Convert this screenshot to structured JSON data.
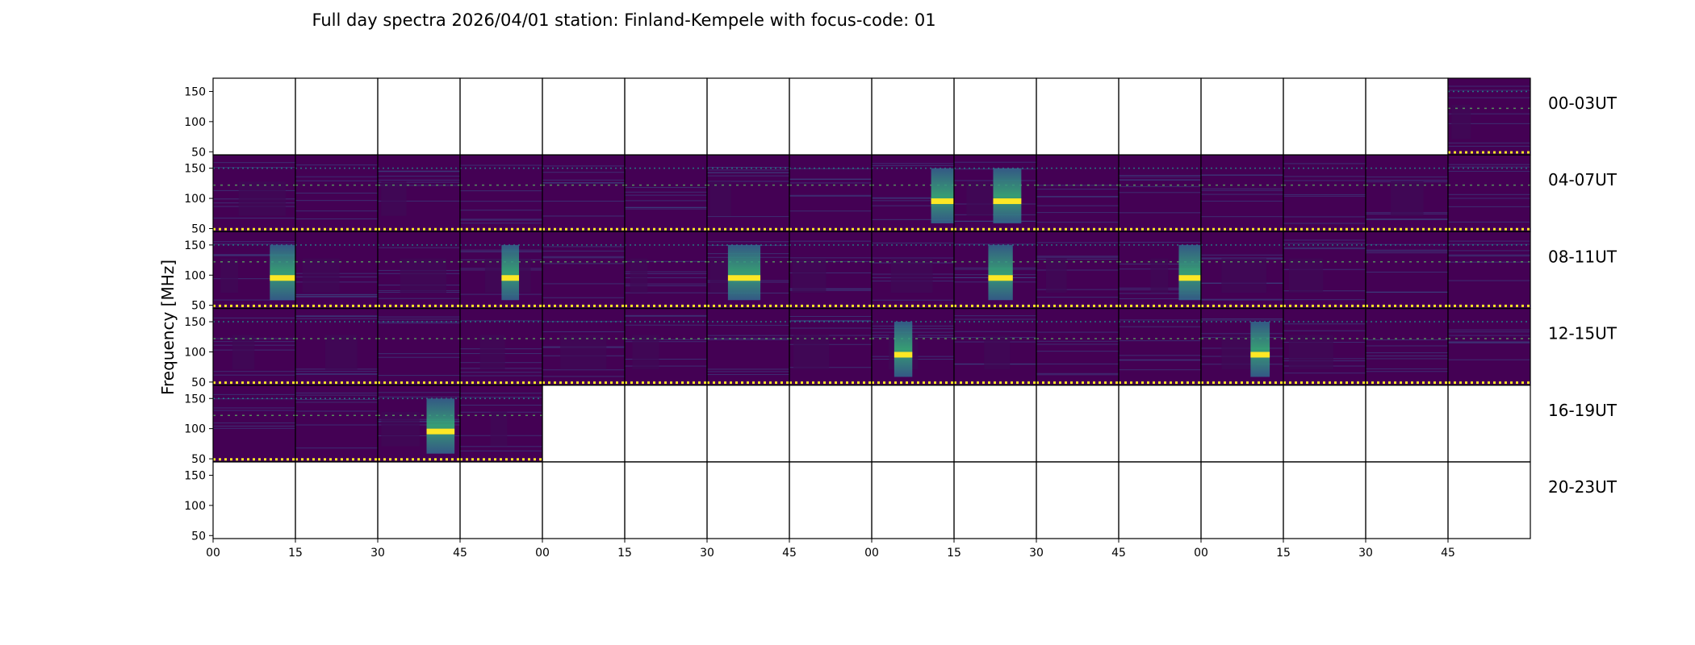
{
  "chart_data": {
    "type": "heatmap",
    "title": "Full day spectra 2026/04/01 station: Finland-Kempele with focus-code: 01",
    "ylabel": "Frequency [MHz]",
    "ylim": [
      45,
      172
    ],
    "yticks": [
      "150",
      "100",
      "50"
    ],
    "ytick_values": [
      150,
      100,
      50
    ],
    "xticks": [
      "00",
      "15",
      "30",
      "45",
      "00",
      "15",
      "30",
      "45",
      "00",
      "15",
      "30",
      "45",
      "00",
      "15",
      "30",
      "45"
    ],
    "colormap": [
      "#440154",
      "#3b528b",
      "#21918c",
      "#5ec962",
      "#fde725"
    ],
    "rows": [
      {
        "label": "00-03UT",
        "panels": [
          0,
          0,
          0,
          0,
          0,
          0,
          0,
          0,
          0,
          0,
          0,
          0,
          0,
          0,
          0,
          1
        ]
      },
      {
        "label": "04-07UT",
        "panels": [
          1,
          1,
          1,
          1,
          1,
          1,
          1,
          1,
          1,
          1,
          1,
          1,
          1,
          1,
          1,
          1
        ]
      },
      {
        "label": "08-11UT",
        "panels": [
          1,
          1,
          1,
          1,
          1,
          1,
          1,
          1,
          1,
          1,
          1,
          1,
          1,
          1,
          1,
          1
        ]
      },
      {
        "label": "12-15UT",
        "panels": [
          1,
          1,
          1,
          1,
          1,
          1,
          1,
          1,
          1,
          1,
          1,
          1,
          1,
          1,
          1,
          1
        ]
      },
      {
        "label": "16-19UT",
        "panels": [
          1,
          1,
          1,
          1,
          0,
          0,
          0,
          0,
          0,
          0,
          0,
          0,
          0,
          0,
          0,
          0
        ]
      },
      {
        "label": "20-23UT",
        "panels": [
          0,
          0,
          0,
          0,
          0,
          0,
          0,
          0,
          0,
          0,
          0,
          0,
          0,
          0,
          0,
          0
        ]
      }
    ]
  }
}
